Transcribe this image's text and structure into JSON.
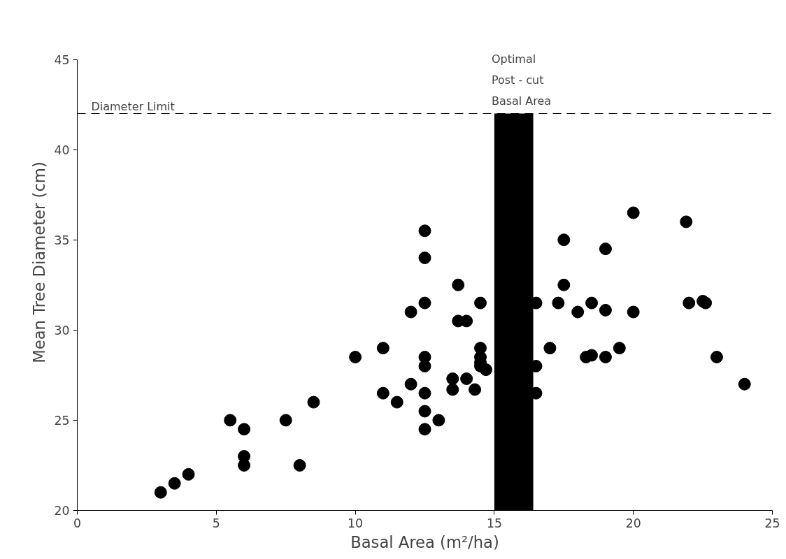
{
  "chart_data": {
    "type": "scatter",
    "xlabel": "Basal Area (m²/ha)",
    "ylabel": "Mean Tree Diameter (cm)",
    "x": [
      3,
      3.5,
      4,
      5.5,
      6,
      6,
      6,
      7.5,
      8,
      8.5,
      10,
      11,
      11,
      11.5,
      12,
      12,
      12.5,
      12.5,
      12.5,
      12.5,
      12.5,
      12.5,
      12.5,
      12.5,
      13,
      13.5,
      13.5,
      13.7,
      13.7,
      14,
      14,
      14.3,
      14.5,
      14.5,
      14.5,
      14.5,
      14.5,
      14.7,
      16.5,
      16.5,
      16.5,
      17,
      17.3,
      17.5,
      17.5,
      18,
      18.3,
      18.5,
      18.5,
      19,
      19,
      19,
      19.5,
      20,
      20,
      21.9,
      22,
      22.5,
      22.6,
      23,
      24
    ],
    "series": [
      {
        "color": "#000000",
        "values": [
          21,
          21.5,
          22,
          25,
          24.5,
          23,
          22.5,
          25,
          22.5,
          26,
          28.5,
          29,
          26.5,
          26,
          31,
          27,
          35.5,
          34,
          31.5,
          28.5,
          28,
          26.5,
          25.5,
          24.5,
          25,
          27.3,
          26.7,
          32.5,
          30.5,
          30.5,
          27.3,
          26.7,
          31.5,
          29,
          28.5,
          28.2,
          28,
          27.8,
          31.5,
          28,
          26.5,
          29,
          31.5,
          35,
          32.5,
          31,
          28.5,
          31.5,
          28.6,
          34.5,
          31.1,
          28.5,
          29,
          36.5,
          31,
          36,
          31.5,
          31.6,
          31.5,
          28.5,
          27
        ]
      }
    ],
    "marker": "circle",
    "grid": false,
    "xlim": [
      0,
      25
    ],
    "xticks": [
      0,
      5,
      10,
      15,
      20,
      25
    ],
    "ylim": [
      20,
      45
    ],
    "yticks": [
      20,
      25,
      30,
      35,
      40,
      45
    ],
    "ref_lines": [
      {
        "axis": "y",
        "value": 42,
        "label": "Diameter Limit",
        "color": "#000000",
        "line_style": "dashed"
      }
    ],
    "bands": [
      {
        "axis": "x",
        "from": 15,
        "to": 16.4,
        "label": "Optimal\nPost - cut\nBasal Area",
        "color": "#000000"
      }
    ]
  }
}
